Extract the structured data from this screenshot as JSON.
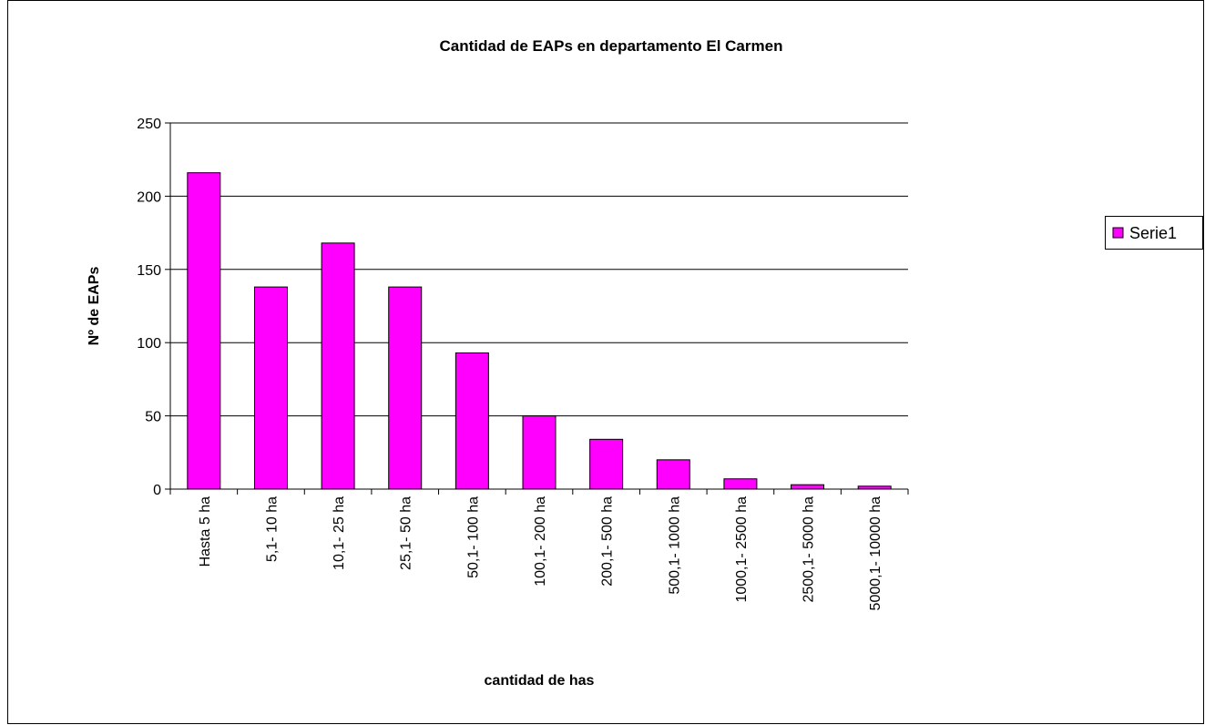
{
  "chart_data": {
    "type": "bar",
    "title": "Cantidad de EAPs en departamento El Carmen",
    "x_label": "cantidad de has",
    "y_label": "Nº de EAPs",
    "categories": [
      "Hasta 5 ha",
      "5,1- 10 ha",
      "10,1- 25 ha",
      "25,1- 50 ha",
      "50,1- 100 ha",
      "100,1- 200 ha",
      "200,1- 500 ha",
      "500,1- 1000 ha",
      "1000,1- 2500 ha",
      "2500,1- 5000 ha",
      "5000,1- 10000 ha"
    ],
    "series": [
      {
        "name": "Serie1",
        "color": "#ff00ff",
        "values": [
          216,
          138,
          168,
          138,
          93,
          50,
          34,
          20,
          7,
          3,
          2
        ]
      }
    ],
    "ylim": [
      0,
      250
    ],
    "yticks": [
      0,
      50,
      100,
      150,
      200,
      250
    ],
    "grid": true,
    "legend": "right"
  }
}
